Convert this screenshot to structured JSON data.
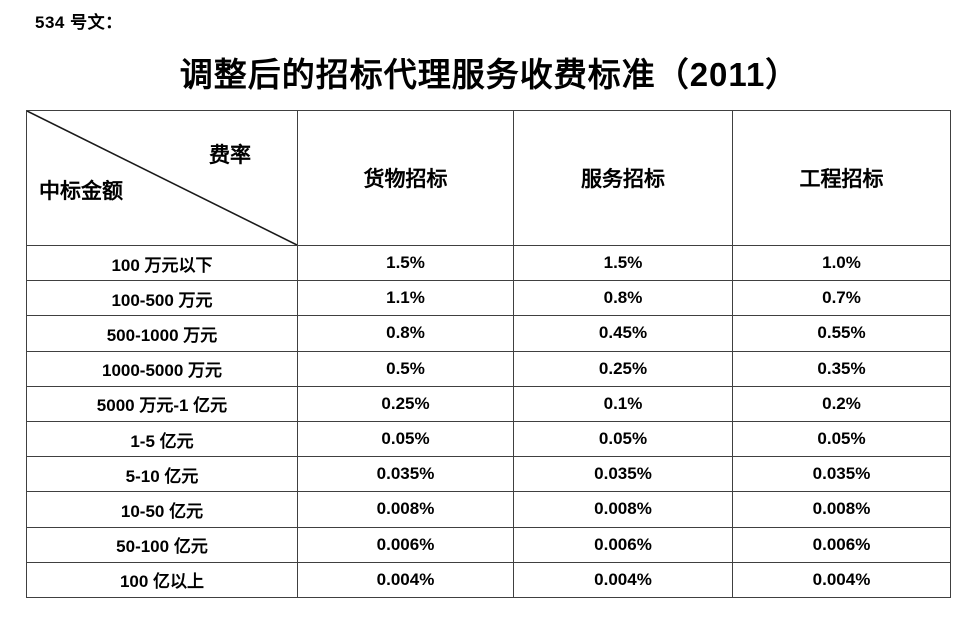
{
  "document": {
    "label": "534 号文：",
    "title": "调整后的招标代理服务收费标准（2011）"
  },
  "table": {
    "corner": {
      "top_right_label": "费率",
      "bottom_left_label": "中标金额"
    },
    "column_headers": [
      "货物招标",
      "服务招标",
      "工程招标"
    ],
    "rows": [
      {
        "range": "100 万元以下",
        "rates": [
          "1.5%",
          "1.5%",
          "1.0%"
        ]
      },
      {
        "range": "100-500 万元",
        "rates": [
          "1.1%",
          "0.8%",
          "0.7%"
        ]
      },
      {
        "range": "500-1000 万元",
        "rates": [
          "0.8%",
          "0.45%",
          "0.55%"
        ]
      },
      {
        "range": "1000-5000 万元",
        "rates": [
          "0.5%",
          "0.25%",
          "0.35%"
        ]
      },
      {
        "range": "5000 万元-1 亿元",
        "rates": [
          "0.25%",
          "0.1%",
          "0.2%"
        ]
      },
      {
        "range": "1-5 亿元",
        "rates": [
          "0.05%",
          "0.05%",
          "0.05%"
        ]
      },
      {
        "range": "5-10 亿元",
        "rates": [
          "0.035%",
          "0.035%",
          "0.035%"
        ]
      },
      {
        "range": "10-50 亿元",
        "rates": [
          "0.008%",
          "0.008%",
          "0.008%"
        ]
      },
      {
        "range": "50-100 亿元",
        "rates": [
          "0.006%",
          "0.006%",
          "0.006%"
        ]
      },
      {
        "range": "100 亿以上",
        "rates": [
          "0.004%",
          "0.004%",
          "0.004%"
        ]
      }
    ],
    "colors": {
      "border": "#404040",
      "diagonal": "#1a1a1a",
      "text": "#000000",
      "background": "#ffffff"
    }
  }
}
